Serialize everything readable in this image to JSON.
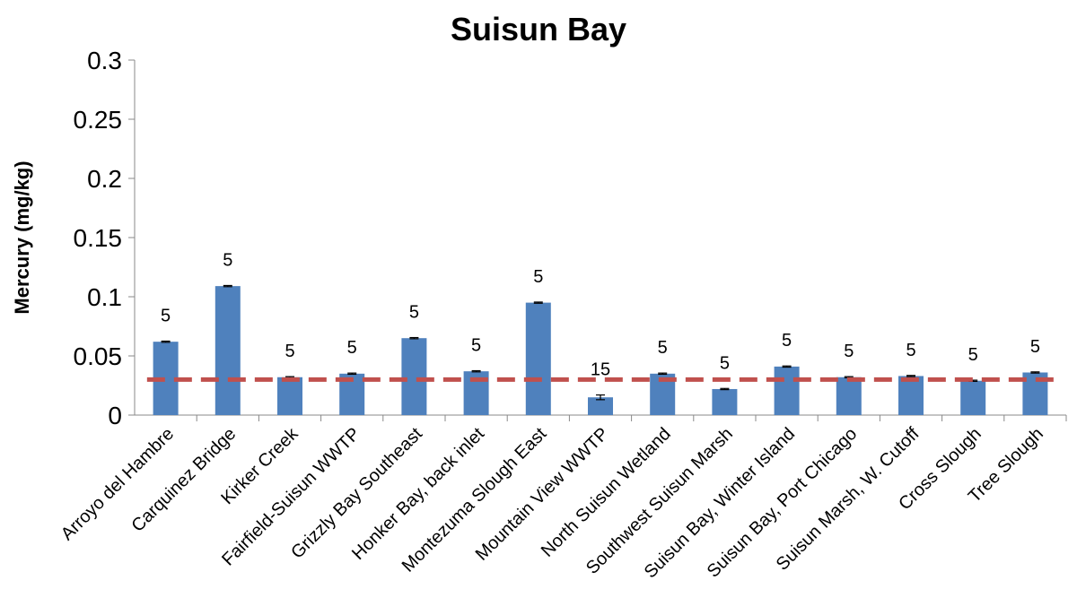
{
  "chart_data": {
    "type": "bar",
    "title": "Suisun Bay",
    "y_label": "Mercury (mg/kg)",
    "categories": [
      "Arroyo del Hambre",
      "Carquinez Bridge",
      "Kirker Creek",
      "Fairfield-Suisun WWTP",
      "Grizzly Bay Southeast",
      "Honker Bay, back inlet",
      "Montezuma Slough East",
      "Mountain View WWTP",
      "North Suisun Wetland",
      "Southwest Suisun Marsh",
      "Suisun Bay, Winter Island",
      "Suisun Bay, Port Chicago",
      "Suisun Marsh, W. Cutoff",
      "Cross Slough",
      "Tree Slough"
    ],
    "values": [
      0.062,
      0.109,
      0.032,
      0.035,
      0.065,
      0.037,
      0.095,
      0.015,
      0.035,
      0.022,
      0.041,
      0.032,
      0.033,
      0.029,
      0.036
    ],
    "errors": [
      0.0005,
      0.0005,
      0.0005,
      0.0005,
      0.0005,
      0.0005,
      0.0005,
      0.002,
      0.0005,
      0.0005,
      0.0005,
      0.0005,
      0.0005,
      0.0005,
      0.0005
    ],
    "counts": [
      5,
      5,
      5,
      5,
      5,
      5,
      5,
      15,
      5,
      5,
      5,
      5,
      5,
      5,
      5
    ],
    "color": "#4f81bd",
    "threshold": 0.03,
    "threshold_color": "#c0504d",
    "ylim": [
      0,
      0.3
    ],
    "yticks": [
      0,
      0.05,
      0.1,
      0.15,
      0.2,
      0.25,
      0.3
    ]
  }
}
